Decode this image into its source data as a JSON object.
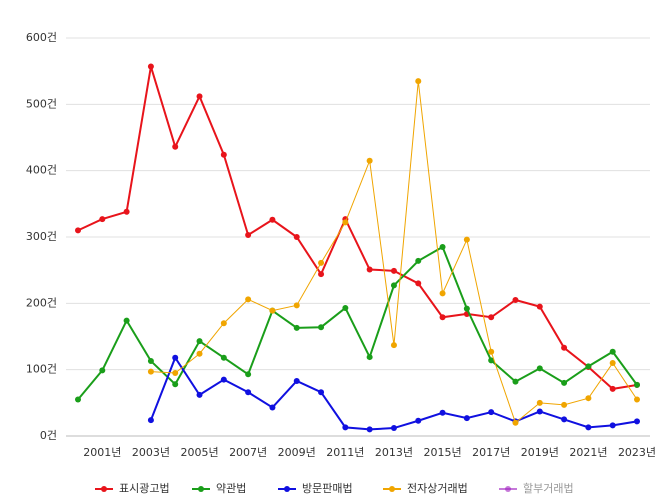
{
  "chart_data": {
    "type": "line",
    "categories": [
      null,
      "2001년",
      null,
      "2003년",
      null,
      "2005년",
      null,
      "2007년",
      null,
      "2009년",
      null,
      "2011년",
      null,
      "2013년",
      null,
      "2015년",
      null,
      "2017년",
      null,
      "2019년",
      null,
      "2021년",
      null,
      "2023년"
    ],
    "ylim": [
      0,
      600
    ],
    "yticks": [
      {
        "value": 0,
        "label": "0건"
      },
      {
        "value": 100,
        "label": "100건"
      },
      {
        "value": 200,
        "label": "200건"
      },
      {
        "value": 300,
        "label": "300건"
      },
      {
        "value": 400,
        "label": "400건"
      },
      {
        "value": 500,
        "label": "500건"
      },
      {
        "value": 600,
        "label": "600건"
      }
    ],
    "grid": true,
    "legend": "bottom",
    "series": [
      {
        "name": "표시광고법",
        "color": "#e8141b",
        "line_width": 2,
        "values": [
          310,
          327,
          338,
          557,
          436,
          512,
          424,
          303,
          326,
          300,
          244,
          327,
          251,
          249,
          230,
          179,
          184,
          179,
          205,
          195,
          133,
          104,
          71,
          77
        ]
      },
      {
        "name": "약관법",
        "color": "#1a9e1a",
        "line_width": 2,
        "values": [
          55,
          99,
          174,
          113,
          78,
          143,
          118,
          93,
          189,
          163,
          164,
          193,
          119,
          227,
          264,
          285,
          192,
          114,
          82,
          102,
          80,
          105,
          127,
          77
        ]
      },
      {
        "name": "방문판매법",
        "color": "#1010e0",
        "line_width": 2,
        "values": [
          null,
          null,
          null,
          24,
          118,
          62,
          85,
          66,
          43,
          83,
          66,
          13,
          10,
          12,
          23,
          35,
          27,
          36,
          22,
          37,
          25,
          13,
          16,
          22
        ]
      },
      {
        "name": "전자상거래법",
        "color": "#f0a500",
        "line_width": 1,
        "values": [
          null,
          null,
          null,
          97,
          95,
          124,
          170,
          206,
          189,
          197,
          261,
          322,
          415,
          137,
          535,
          215,
          296,
          127,
          20,
          50,
          47,
          57,
          110,
          55
        ]
      },
      {
        "name": "할부거래법",
        "color": "#a020c0",
        "line_width": 2,
        "hidden": true,
        "values": [
          null,
          null,
          null,
          null,
          null,
          null,
          null,
          null,
          null,
          null,
          null,
          null,
          null,
          null,
          null,
          null,
          null,
          null,
          null,
          null,
          null,
          null,
          null,
          null
        ]
      }
    ]
  }
}
